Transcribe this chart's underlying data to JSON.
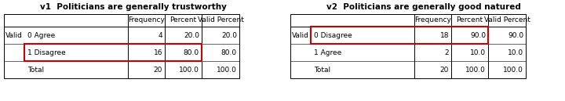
{
  "title1": "v1  Politicians are generally trustworthy",
  "title2": "v2  Politicians are generally good natured",
  "table1": {
    "rows": [
      [
        "Valid",
        "0 Agree",
        "4",
        "20.0",
        "20.0"
      ],
      [
        "",
        "1 Disagree",
        "16",
        "80.0",
        "80.0"
      ],
      [
        "",
        "Total",
        "20",
        "100.0",
        "100.0"
      ]
    ],
    "highlight_row": 1
  },
  "table2": {
    "rows": [
      [
        "Valid",
        "0 Disagree",
        "18",
        "90.0",
        "90.0"
      ],
      [
        "",
        "1 Agree",
        "2",
        "10.0",
        "10.0"
      ],
      [
        "",
        "Total",
        "20",
        "100.0",
        "100.0"
      ]
    ],
    "highlight_row": 0
  },
  "highlight_color": "#cc0000",
  "bg_color": "#ffffff",
  "text_color": "#000000",
  "font_size": 6.5,
  "title_font_size": 7.5
}
